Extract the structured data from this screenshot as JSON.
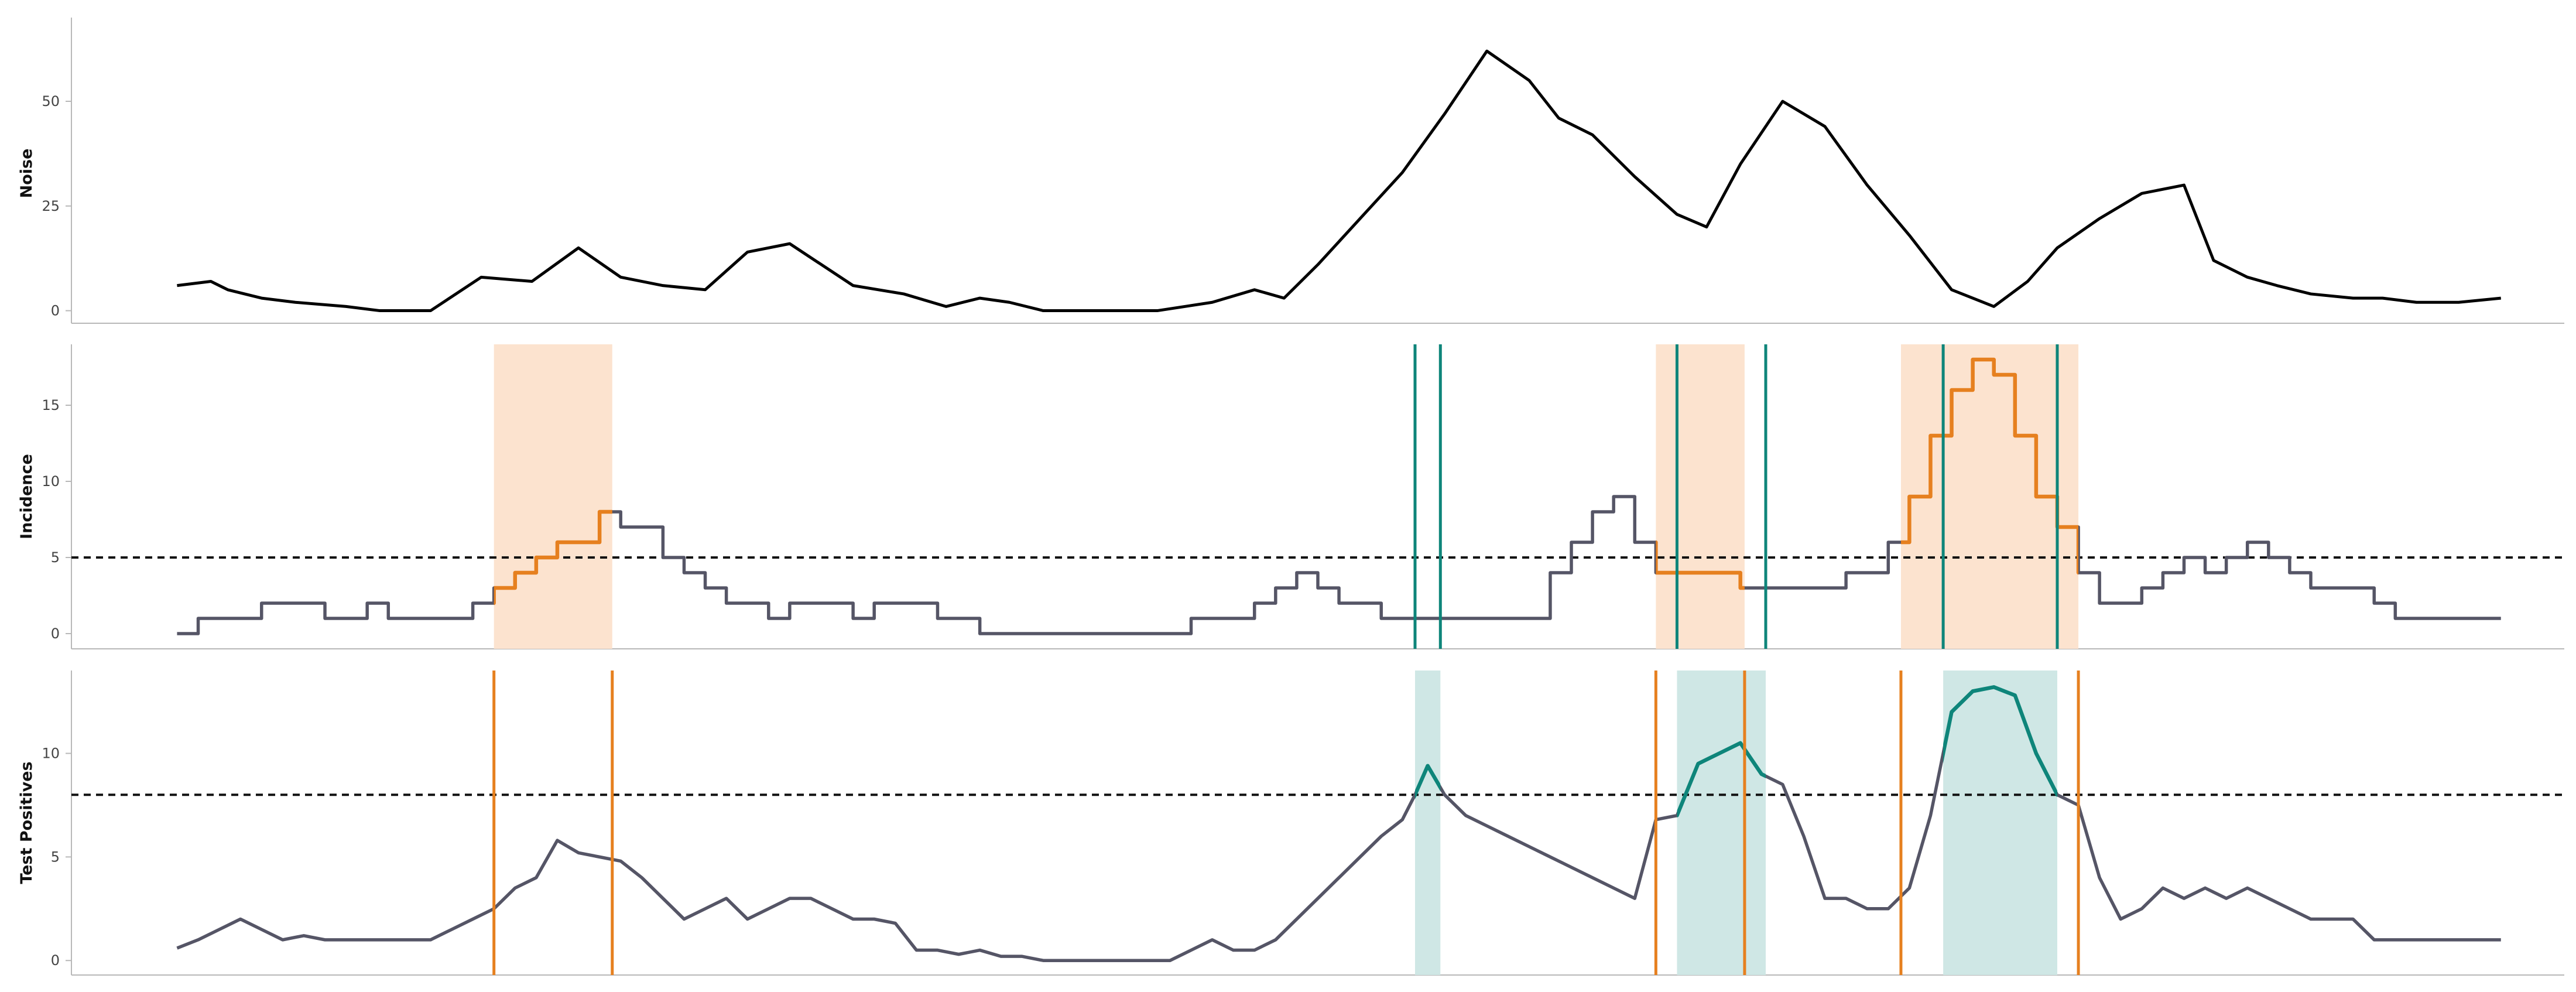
{
  "colors": {
    "noise_line": "#000000",
    "base_line": "#555566",
    "orange": "#e6801f",
    "orange_band": "#fce3cf",
    "teal": "#0e857a",
    "teal_band": "#cfe7e5",
    "threshold": "#111111"
  },
  "chart_data": [
    {
      "id": "noise",
      "type": "line",
      "ylabel": "Noise",
      "ylim": [
        -3,
        70
      ],
      "yticks": [
        0,
        25,
        50
      ],
      "xlim": [
        -25,
        565
      ],
      "grid": false,
      "legend": "none",
      "series": [
        {
          "x": [
            0,
            8,
            12,
            20,
            28,
            40,
            48,
            60,
            72,
            84,
            95,
            105,
            115,
            125,
            135,
            145,
            160,
            172,
            182,
            190,
            197,
            205,
            212,
            222,
            232,
            245,
            255,
            262,
            270,
            280,
            290,
            300,
            310,
            320,
            327,
            335,
            345,
            355,
            362,
            370,
            380,
            390,
            400,
            410,
            420,
            430,
            438,
            445,
            455,
            465,
            475,
            482,
            490,
            497,
            505,
            515,
            522,
            530,
            540,
            550
          ],
          "y": [
            6,
            7,
            5,
            3,
            2,
            1,
            0,
            0,
            8,
            7,
            15,
            8,
            6,
            5,
            14,
            16,
            6,
            4,
            1,
            3,
            2,
            0,
            0,
            0,
            0,
            2,
            5,
            3,
            11,
            22,
            33,
            47,
            62,
            55,
            46,
            42,
            32,
            23,
            20,
            35,
            50,
            44,
            30,
            18,
            5,
            1,
            7,
            15,
            22,
            28,
            30,
            12,
            8,
            6,
            4,
            3,
            3,
            2,
            2,
            3
          ]
        }
      ]
    },
    {
      "id": "incidence",
      "type": "line",
      "ylabel": "Incidence",
      "ylim": [
        -1,
        19
      ],
      "yticks": [
        0,
        5,
        10,
        15
      ],
      "xlim": [
        -25,
        565
      ],
      "threshold": 5,
      "grid": false,
      "legend": "none",
      "series": [
        {
          "x": [
            0,
            5,
            15,
            20,
            30,
            35,
            45,
            50,
            60,
            70,
            75,
            80,
            85,
            90,
            100,
            105,
            110,
            115,
            120,
            125,
            130,
            135,
            140,
            145,
            155,
            160,
            165,
            170,
            180,
            190,
            200,
            215,
            225,
            230,
            235,
            240,
            245,
            250,
            255,
            260,
            265,
            270,
            275,
            285,
            290,
            295,
            300,
            305,
            310,
            320,
            325,
            330,
            335,
            340,
            345,
            350,
            360,
            370,
            375,
            380,
            385,
            390,
            395,
            400,
            405,
            410,
            415,
            420,
            425,
            430,
            435,
            440,
            445,
            450,
            455,
            460,
            465,
            470,
            475,
            480,
            485,
            490,
            495,
            500,
            505,
            510,
            515,
            520,
            525,
            530,
            550
          ],
          "y": [
            0,
            1,
            1,
            2,
            2,
            1,
            2,
            1,
            1,
            2,
            3,
            4,
            5,
            6,
            8,
            7,
            7,
            5,
            4,
            3,
            2,
            2,
            1,
            2,
            2,
            1,
            2,
            2,
            1,
            0,
            0,
            0,
            0,
            0,
            0,
            1,
            1,
            1,
            2,
            3,
            4,
            3,
            2,
            1,
            1,
            1,
            1,
            1,
            1,
            1,
            4,
            6,
            8,
            9,
            6,
            4,
            4,
            3,
            3,
            3,
            3,
            3,
            4,
            4,
            6,
            9,
            13,
            16,
            18,
            17,
            13,
            9,
            7,
            4,
            2,
            2,
            3,
            4,
            5,
            4,
            5,
            6,
            5,
            4,
            3,
            3,
            3,
            2,
            1,
            1,
            1
          ]
        }
      ],
      "orange_bands": [
        [
          75,
          103
        ],
        [
          350,
          371
        ],
        [
          408,
          450
        ]
      ],
      "teal_lines": [
        293,
        299,
        355,
        376,
        418,
        445
      ]
    },
    {
      "id": "test_positives",
      "type": "line",
      "ylabel": "Test Positives",
      "ylim": [
        -0.7,
        14
      ],
      "yticks": [
        0,
        5,
        10
      ],
      "xlim": [
        -25,
        565
      ],
      "threshold": 8,
      "grid": false,
      "legend": "none",
      "series": [
        {
          "x": [
            0,
            5,
            10,
            15,
            20,
            25,
            30,
            35,
            40,
            45,
            50,
            55,
            60,
            65,
            70,
            75,
            80,
            85,
            90,
            95,
            100,
            105,
            110,
            115,
            120,
            125,
            130,
            135,
            140,
            145,
            150,
            155,
            160,
            165,
            170,
            175,
            180,
            185,
            190,
            195,
            200,
            205,
            210,
            215,
            220,
            225,
            230,
            235,
            240,
            245,
            250,
            255,
            260,
            265,
            270,
            275,
            280,
            285,
            290,
            293,
            296,
            300,
            305,
            310,
            315,
            320,
            325,
            330,
            335,
            340,
            345,
            350,
            355,
            360,
            365,
            370,
            375,
            380,
            385,
            390,
            395,
            400,
            405,
            410,
            415,
            420,
            425,
            430,
            435,
            440,
            445,
            450,
            455,
            460,
            465,
            470,
            475,
            480,
            485,
            490,
            495,
            500,
            505,
            510,
            515,
            520,
            525,
            530,
            535,
            540,
            545,
            550
          ],
          "y": [
            0.6,
            1,
            1.5,
            2,
            1.5,
            1,
            1.2,
            1,
            1,
            1,
            1,
            1,
            1,
            1.5,
            2,
            2.5,
            3.5,
            4,
            5.8,
            5.2,
            5,
            4.8,
            4,
            3,
            2,
            2.5,
            3,
            2,
            2.5,
            3,
            3,
            2.5,
            2,
            2,
            1.8,
            0.5,
            0.5,
            0.3,
            0.5,
            0.2,
            0.2,
            0,
            0,
            0,
            0,
            0,
            0,
            0,
            0.5,
            1,
            0.5,
            0.5,
            1,
            2,
            3,
            4,
            5,
            6,
            6.8,
            8,
            9.4,
            8,
            7,
            6.5,
            6,
            5.5,
            5,
            4.5,
            4,
            3.5,
            3,
            6.8,
            7,
            9.5,
            10,
            10.5,
            9,
            8.5,
            6,
            3,
            3,
            2.5,
            2.5,
            3.5,
            7,
            12,
            13,
            13.2,
            12.8,
            10,
            8,
            7.5,
            4,
            2,
            2.5,
            3.5,
            3,
            3.5,
            3,
            3.5,
            3,
            2.5,
            2,
            2,
            2,
            1,
            1,
            1,
            1,
            1,
            1,
            1
          ]
        }
      ],
      "teal_bands": [
        [
          293,
          299
        ],
        [
          355,
          376
        ],
        [
          418,
          445
        ]
      ],
      "orange_lines": [
        75,
        103,
        350,
        371,
        408,
        450
      ]
    }
  ]
}
